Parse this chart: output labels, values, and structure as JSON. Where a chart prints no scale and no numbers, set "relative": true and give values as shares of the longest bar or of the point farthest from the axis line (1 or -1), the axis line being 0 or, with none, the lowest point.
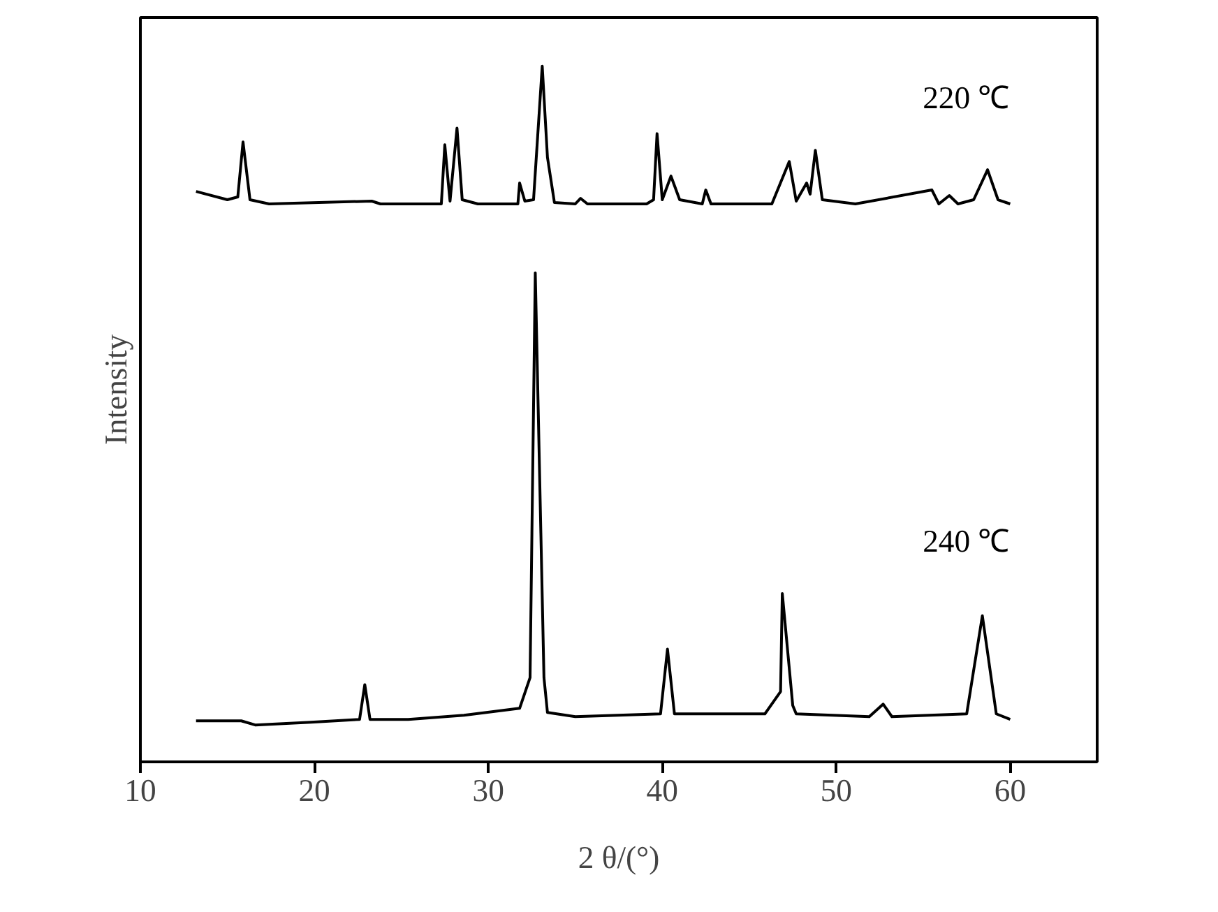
{
  "chart_data": {
    "type": "line",
    "relative": true,
    "xlabel": "2 θ/(°)",
    "ylabel": "Intensity",
    "xlim": [
      10,
      65
    ],
    "xticks": [
      10,
      20,
      30,
      40,
      50,
      60
    ],
    "tick_labels": "x",
    "grid": false,
    "marker": "none",
    "line_style": "solid",
    "series": [
      {
        "name": "220 ℃",
        "color": "#000000",
        "x": [
          13.2,
          15.0,
          15.6,
          15.9,
          16.3,
          17.4,
          23.3,
          23.8,
          27.0,
          27.3,
          27.5,
          27.7,
          27.8,
          28.2,
          28.5,
          29.4,
          31.7,
          31.8,
          32.1,
          32.6,
          33.1,
          33.4,
          33.8,
          35.0,
          35.3,
          35.7,
          39.1,
          39.5,
          39.7,
          40.0,
          40.5,
          41.0,
          42.3,
          42.5,
          42.8,
          46.3,
          47.3,
          47.7,
          48.3,
          48.5,
          48.8,
          49.2,
          51.1,
          55.5,
          55.9,
          56.5,
          57.0,
          57.9,
          58.7,
          59.3,
          60.0
        ],
        "values": [
          0.82,
          0.808,
          0.812,
          0.891,
          0.808,
          0.802,
          0.806,
          0.802,
          0.802,
          0.802,
          0.887,
          0.832,
          0.806,
          0.911,
          0.808,
          0.802,
          0.802,
          0.832,
          0.806,
          0.808,
          1.0,
          0.869,
          0.804,
          0.802,
          0.81,
          0.802,
          0.802,
          0.808,
          0.903,
          0.808,
          0.842,
          0.808,
          0.802,
          0.822,
          0.802,
          0.802,
          0.863,
          0.806,
          0.832,
          0.816,
          0.879,
          0.808,
          0.802,
          0.822,
          0.802,
          0.814,
          0.802,
          0.808,
          0.851,
          0.808,
          0.802
        ]
      },
      {
        "name": "240 ℃",
        "color": "#000000",
        "x": [
          13.2,
          15.8,
          16.6,
          19.8,
          22.6,
          22.9,
          23.2,
          25.4,
          28.6,
          31.8,
          32.4,
          32.7,
          33.2,
          33.4,
          35.0,
          39.9,
          40.3,
          40.7,
          45.9,
          46.8,
          46.9,
          47.5,
          47.7,
          51.9,
          52.7,
          53.2,
          57.5,
          58.4,
          59.2,
          60.0
        ],
        "values": [
          0.059,
          0.059,
          0.053,
          0.057,
          0.061,
          0.111,
          0.061,
          0.061,
          0.067,
          0.077,
          0.121,
          0.703,
          0.121,
          0.071,
          0.065,
          0.069,
          0.162,
          0.069,
          0.069,
          0.101,
          0.242,
          0.081,
          0.069,
          0.065,
          0.083,
          0.065,
          0.069,
          0.21,
          0.069,
          0.061
        ]
      }
    ]
  }
}
